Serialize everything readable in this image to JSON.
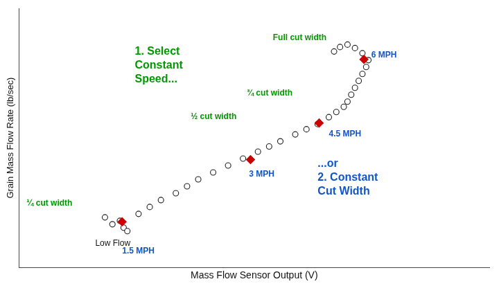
{
  "chart_data": {
    "type": "scatter",
    "xlabel": "Mass Flow Sensor Output (V)",
    "ylabel": "Grain Mass Flow Rate (lb/sec)",
    "xlim": [
      0.5,
      6.8
    ],
    "ylim": [
      0.0,
      7.5
    ],
    "grid": false,
    "tick_labels": false,
    "series": [
      {
        "marker": "open_circle",
        "color": "#222222",
        "x": [
          1.65,
          1.75,
          1.85,
          1.9,
          1.95,
          2.1,
          2.25,
          2.4,
          2.6,
          2.75,
          2.9,
          3.1,
          3.3,
          3.5,
          3.7,
          3.85,
          4.0,
          4.2,
          4.35,
          4.5,
          4.65,
          4.75,
          4.85,
          4.9,
          4.95,
          5.0,
          5.05,
          5.1,
          5.15,
          5.18,
          5.1,
          5.0,
          4.9,
          4.8,
          4.72
        ],
        "values": [
          1.45,
          1.25,
          1.35,
          1.15,
          1.05,
          1.55,
          1.75,
          1.95,
          2.15,
          2.35,
          2.55,
          2.75,
          2.95,
          3.15,
          3.35,
          3.5,
          3.65,
          3.85,
          4.0,
          4.15,
          4.35,
          4.5,
          4.65,
          4.8,
          5.0,
          5.2,
          5.4,
          5.6,
          5.8,
          6.0,
          6.2,
          6.35,
          6.45,
          6.38,
          6.25
        ]
      },
      {
        "marker": "diamond",
        "color": "#cc0000",
        "x": [
          1.88,
          3.6,
          4.52,
          5.12
        ],
        "values": [
          1.32,
          3.12,
          4.18,
          6.02
        ]
      }
    ],
    "annotations": [
      {
        "text": "¼ cut width",
        "x": 0.6,
        "y": 1.85,
        "color": "#009900",
        "bold": true
      },
      {
        "text": "Low Flow",
        "x": 1.52,
        "y": 0.7,
        "color": "#111111",
        "bold": false
      },
      {
        "text": "1.5 MPH",
        "x": 1.88,
        "y": 0.48,
        "color": "#1155cc",
        "bold": true
      },
      {
        "text": "½ cut width",
        "x": 2.8,
        "y": 4.35,
        "color": "#009900",
        "bold": true
      },
      {
        "text": "3 MPH",
        "x": 3.58,
        "y": 2.7,
        "color": "#1155cc",
        "bold": true
      },
      {
        "text": "¾ cut width",
        "x": 3.55,
        "y": 5.05,
        "color": "#009900",
        "bold": true
      },
      {
        "text": "4.5 MPH",
        "x": 4.65,
        "y": 3.85,
        "color": "#1155cc",
        "bold": true
      },
      {
        "text": "Full cut width",
        "x": 3.9,
        "y": 6.65,
        "color": "#009900",
        "bold": true
      },
      {
        "text": "6 MPH",
        "x": 5.22,
        "y": 6.15,
        "color": "#1155cc",
        "bold": true
      },
      {
        "text": "1. Select\nConstant\nSpeed...",
        "x": 2.05,
        "y": 5.85,
        "color": "#009900",
        "bold": true
      },
      {
        "text": "...or\n2. Constant\nCut Width",
        "x": 4.5,
        "y": 2.6,
        "color": "#1155cc",
        "bold": true
      }
    ]
  }
}
